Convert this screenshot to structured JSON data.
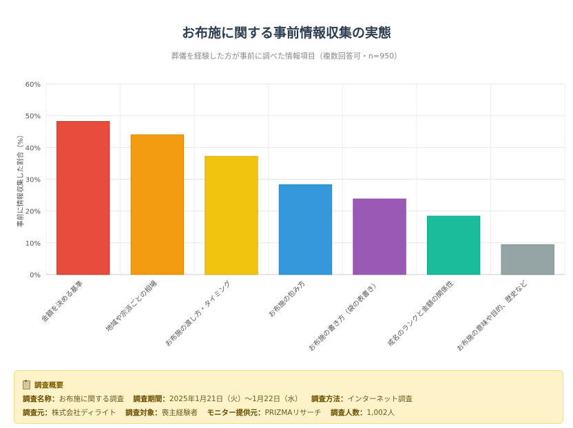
{
  "title": "お布施に関する事前情報収集の実態",
  "subtitle": "葬儀を経験した方が事前に調べた情報項目（複数回答可・n=950）",
  "chart_data": {
    "type": "bar",
    "ylabel": "事前に情報収集した割合（%）",
    "ylim": [
      0,
      60
    ],
    "yticks": [
      "0%",
      "10%",
      "20%",
      "30%",
      "40%",
      "50%",
      "60%"
    ],
    "grid": true,
    "categories": [
      "金額を決める基準",
      "地域や宗派ごとの相場",
      "お布施の渡し方・タイミング",
      "お布施の包み方",
      "お布施の書き方（袋の表書き）",
      "戒名のランクと金額の関係性",
      "お布施の意味や目的、歴史など"
    ],
    "values": [
      48.2,
      44.0,
      37.2,
      28.3,
      23.8,
      18.4,
      9.4
    ],
    "colors": [
      "#e74c3c",
      "#f39c12",
      "#f1c40f",
      "#3498db",
      "#9b59b6",
      "#1abc9c",
      "#95a5a6"
    ],
    "border_colors": [
      "#c0392b",
      "#d68910",
      "#d4ac0d",
      "#2e86c1",
      "#884ea0",
      "#17a589",
      "#7f8c8d"
    ]
  },
  "summary": {
    "icon": "clipboard-icon",
    "heading": "調査概要",
    "name_label": "調査名称：",
    "name_value": "お布施に関する調査",
    "period_label": "調査期間：",
    "period_value": "2025年1月21日（火）〜1月22日（水）",
    "method_label": "調査方法：",
    "method_value": "インターネット調査",
    "source_label": "調査元：",
    "source_value": "株式会社ディライト",
    "target_label": "調査対象：",
    "target_value": "喪主経験者",
    "monitor_label": "モニター提供元：",
    "monitor_value": "PRIZMAリサーチ",
    "count_label": "調査人数：",
    "count_value": "1,002人"
  }
}
